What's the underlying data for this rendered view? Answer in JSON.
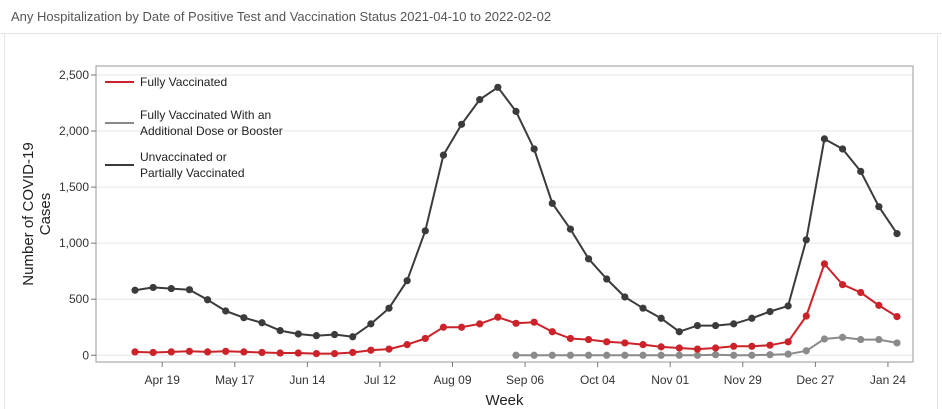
{
  "panel": {
    "title": "Any Hospitalization by Date of Positive Test and Vaccination Status 2021-04-10 to 2022-02-02"
  },
  "chart_data": {
    "type": "line",
    "title": "",
    "xlabel": "Week",
    "ylabel_lines": [
      "Number of COVID-19",
      "Cases"
    ],
    "ylim": [
      -60,
      2580
    ],
    "y_ticks": [
      0,
      500,
      1000,
      1500,
      2000,
      2500
    ],
    "y_tick_labels": [
      "0",
      "500",
      "1,000",
      "1,500",
      "2,000",
      "2,500"
    ],
    "x_tick_labels": [
      "Apr 19",
      "May 17",
      "Jun 14",
      "Jul 12",
      "Aug 09",
      "Sep 06",
      "Oct 04",
      "Nov 01",
      "Nov 29",
      "Dec 27",
      "Jan 24"
    ],
    "x_tick_positions": [
      1.5,
      5.5,
      9.5,
      13.5,
      17.5,
      21.5,
      25.5,
      29.5,
      33.5,
      37.5,
      41.5
    ],
    "x": [
      "Apr 12",
      "Apr 19",
      "Apr 26",
      "May 03",
      "May 10",
      "May 17",
      "May 24",
      "May 31",
      "Jun 07",
      "Jun 14",
      "Jun 21",
      "Jun 28",
      "Jul 05",
      "Jul 12",
      "Jul 19",
      "Jul 26",
      "Aug 02",
      "Aug 09",
      "Aug 16",
      "Aug 23",
      "Aug 30",
      "Sep 06",
      "Sep 13",
      "Sep 20",
      "Sep 27",
      "Oct 04",
      "Oct 11",
      "Oct 18",
      "Oct 25",
      "Nov 01",
      "Nov 08",
      "Nov 15",
      "Nov 22",
      "Nov 29",
      "Dec 06",
      "Dec 13",
      "Dec 20",
      "Dec 27",
      "Jan 03",
      "Jan 10",
      "Jan 17",
      "Jan 24",
      "Jan 31"
    ],
    "grid": true,
    "legend_position": "top-left",
    "series": [
      {
        "name": "Fully Vaccinated",
        "label_lines": [
          "Fully Vaccinated"
        ],
        "color": "#cc2229",
        "values": [
          30,
          25,
          30,
          35,
          30,
          35,
          30,
          25,
          20,
          20,
          15,
          15,
          25,
          45,
          55,
          95,
          150,
          250,
          250,
          280,
          340,
          285,
          295,
          210,
          150,
          140,
          120,
          110,
          95,
          75,
          65,
          55,
          65,
          80,
          80,
          90,
          120,
          350,
          815,
          630,
          560,
          445,
          345
        ]
      },
      {
        "name": "Fully Vaccinated With an Additional Dose or Booster",
        "label_lines": [
          "Fully Vaccinated With an",
          " Additional Dose or Booster"
        ],
        "color": "#8a8a8a",
        "values": [
          null,
          null,
          null,
          null,
          null,
          null,
          null,
          null,
          null,
          null,
          null,
          null,
          null,
          null,
          null,
          null,
          null,
          null,
          null,
          null,
          null,
          0,
          0,
          0,
          0,
          0,
          0,
          0,
          0,
          0,
          0,
          0,
          5,
          0,
          0,
          5,
          10,
          40,
          145,
          160,
          140,
          140,
          110
        ]
      },
      {
        "name": "Unvaccinated or Partially Vaccinated",
        "label_lines": [
          "Unvaccinated or",
          "Partially Vaccinated"
        ],
        "color": "#3b3b3b",
        "values": [
          580,
          605,
          595,
          585,
          495,
          395,
          335,
          290,
          220,
          190,
          175,
          185,
          165,
          280,
          420,
          665,
          1110,
          1785,
          2060,
          2280,
          2390,
          2175,
          1840,
          1355,
          1125,
          860,
          680,
          520,
          420,
          330,
          210,
          265,
          265,
          280,
          330,
          390,
          440,
          1030,
          1930,
          1840,
          1640,
          1325,
          1085
        ]
      }
    ]
  }
}
